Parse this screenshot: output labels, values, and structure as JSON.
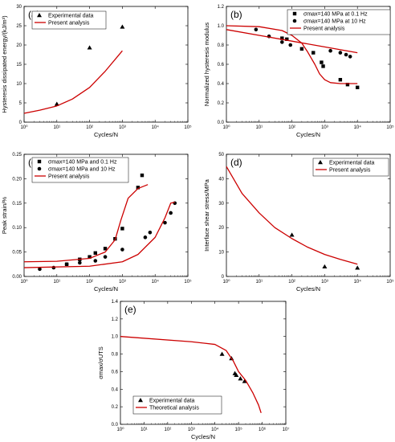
{
  "chart_data": [
    {
      "panel_label": "(a)",
      "type": "scatter",
      "xlabel": "Cycles/N",
      "ylabel": "Hysteresis dissipated energy/(kJ/m³)",
      "xscale": "log",
      "xlim": [
        1,
        100000
      ],
      "ylim": [
        0,
        30
      ],
      "xticks": [
        1,
        10,
        100,
        1000,
        10000,
        100000
      ],
      "xticklabels": [
        "10⁰",
        "10¹",
        "10²",
        "10³",
        "10⁴",
        "10⁵"
      ],
      "yticks": [
        0,
        5,
        10,
        15,
        20,
        25,
        30
      ],
      "yticklabels": [
        "0",
        "5",
        "10",
        "15",
        "20",
        "25",
        "30"
      ],
      "legend": {
        "position": "top-left",
        "entries": [
          "Experimental data",
          "Present analysis"
        ]
      },
      "series": [
        {
          "name": "Experimental data",
          "kind": "points",
          "marker": "triangle",
          "color": "#000000",
          "x": [
            10,
            100,
            1000
          ],
          "y": [
            4.7,
            19.3,
            24.7
          ]
        },
        {
          "name": "Present analysis",
          "kind": "line",
          "color": "#cc0000",
          "x": [
            1,
            3,
            10,
            30,
            100,
            300,
            1000
          ],
          "y": [
            2.3,
            3.1,
            4.2,
            6.0,
            9.0,
            13.2,
            18.5
          ]
        }
      ]
    },
    {
      "panel_label": "(b)",
      "type": "scatter",
      "xlabel": "Cycles/N",
      "ylabel": "Normalized hysteresis modulus",
      "xscale": "log",
      "xlim": [
        1,
        100000
      ],
      "ylim": [
        0,
        1.2
      ],
      "xticks": [
        1,
        10,
        100,
        1000,
        10000,
        100000
      ],
      "xticklabels": [
        "10⁰",
        "10¹",
        "10²",
        "10³",
        "10⁴",
        "10⁵"
      ],
      "yticks": [
        0,
        0.2,
        0.4,
        0.6,
        0.8,
        1.0,
        1.2
      ],
      "yticklabels": [
        "0.0",
        "0.2",
        "0.4",
        "0.6",
        "0.8",
        "1.0",
        "1.2"
      ],
      "legend": {
        "position": "top-right",
        "entries": [
          "σmax=140 MPa at 0.1 Hz",
          "σmax=140 MPa at 10 Hz",
          "Present analysis"
        ]
      },
      "series": [
        {
          "name": "σmax=140 MPa at 0.1 Hz",
          "kind": "points",
          "marker": "square",
          "color": "#000000",
          "x": [
            50,
            70,
            200,
            450,
            800,
            900,
            3000,
            5000,
            10000
          ],
          "y": [
            0.87,
            0.86,
            0.76,
            0.72,
            0.62,
            0.58,
            0.44,
            0.39,
            0.36
          ]
        },
        {
          "name": "σmax=140 MPa at 10 Hz",
          "kind": "points",
          "marker": "circle",
          "color": "#000000",
          "x": [
            8,
            20,
            50,
            90,
            1500,
            3000,
            4500,
            6000
          ],
          "y": [
            0.96,
            0.89,
            0.83,
            0.8,
            0.74,
            0.72,
            0.7,
            0.68
          ]
        },
        {
          "name": "Present analysis (0.1 Hz)",
          "kind": "line",
          "color": "#cc0000",
          "x": [
            1,
            10,
            50,
            100,
            200,
            300,
            500,
            700,
            1000,
            1500,
            3000,
            10000
          ],
          "y": [
            1.0,
            0.99,
            0.95,
            0.9,
            0.82,
            0.73,
            0.6,
            0.5,
            0.44,
            0.41,
            0.4,
            0.4
          ]
        },
        {
          "name": "Present analysis (10 Hz)",
          "kind": "line",
          "color": "#cc0000",
          "x": [
            1,
            10,
            100,
            1000,
            10000
          ],
          "y": [
            0.96,
            0.9,
            0.84,
            0.78,
            0.72
          ]
        }
      ]
    },
    {
      "panel_label": "(c)",
      "type": "scatter",
      "xlabel": "Cycles/N",
      "ylabel": "Peak strain/%",
      "xscale": "log",
      "xlim": [
        1,
        100000
      ],
      "ylim": [
        0,
        0.25
      ],
      "xticks": [
        1,
        10,
        100,
        1000,
        10000,
        100000
      ],
      "xticklabels": [
        "10⁰",
        "10¹",
        "10²",
        "10³",
        "10⁴",
        "10⁵"
      ],
      "yticks": [
        0,
        0.05,
        0.1,
        0.15,
        0.2,
        0.25
      ],
      "yticklabels": [
        "0.00",
        "0.05",
        "0.10",
        "0.15",
        "0.20",
        "0.25"
      ],
      "legend": {
        "position": "top-left",
        "entries": [
          "σmax=140 MPa and 0.1 Hz",
          "σmax=140 MPa and 10 Hz",
          "Present analysis"
        ]
      },
      "series": [
        {
          "name": "σmax=140 MPa and 0.1 Hz",
          "kind": "points",
          "marker": "square",
          "color": "#000000",
          "x": [
            20,
            50,
            100,
            150,
            300,
            600,
            1000,
            3000,
            4000
          ],
          "y": [
            0.025,
            0.035,
            0.04,
            0.048,
            0.057,
            0.077,
            0.098,
            0.182,
            0.207
          ]
        },
        {
          "name": "σmax=140 MPa and 10 Hz",
          "kind": "points",
          "marker": "circle",
          "color": "#000000",
          "x": [
            3,
            8,
            20,
            50,
            150,
            300,
            1000,
            5000,
            7000,
            20000,
            30000,
            40000
          ],
          "y": [
            0.015,
            0.018,
            0.025,
            0.028,
            0.032,
            0.04,
            0.055,
            0.08,
            0.09,
            0.11,
            0.13,
            0.15
          ]
        },
        {
          "name": "Present analysis (0.1 Hz)",
          "kind": "line",
          "color": "#cc0000",
          "x": [
            1,
            10,
            100,
            300,
            600,
            900,
            1500,
            3000,
            6000
          ],
          "y": [
            0.03,
            0.031,
            0.037,
            0.05,
            0.075,
            0.115,
            0.16,
            0.18,
            0.188
          ]
        },
        {
          "name": "Present analysis (10 Hz)",
          "kind": "line",
          "color": "#cc0000",
          "x": [
            1,
            100,
            1000,
            3000,
            10000,
            20000,
            30000,
            40000
          ],
          "y": [
            0.018,
            0.021,
            0.03,
            0.045,
            0.08,
            0.12,
            0.15,
            0.152
          ]
        }
      ]
    },
    {
      "panel_label": "(d)",
      "type": "scatter",
      "xlabel": "Cycles/N",
      "ylabel": "Interface shear stress/MPa",
      "xscale": "log",
      "xlim": [
        1,
        100000
      ],
      "ylim": [
        0,
        50
      ],
      "xticks": [
        1,
        10,
        100,
        1000,
        10000,
        100000
      ],
      "xticklabels": [
        "10⁰",
        "10¹",
        "10²",
        "10³",
        "10⁴",
        "10⁵"
      ],
      "yticks": [
        0,
        10,
        20,
        30,
        40,
        50
      ],
      "yticklabels": [
        "0",
        "10",
        "20",
        "30",
        "40",
        "50"
      ],
      "legend": {
        "position": "top-right",
        "entries": [
          "Experimental data",
          "Present analysis"
        ]
      },
      "series": [
        {
          "name": "Experimental data",
          "kind": "points",
          "marker": "triangle",
          "color": "#000000",
          "x": [
            100,
            1000,
            10000
          ],
          "y": [
            17,
            4,
            3.5
          ]
        },
        {
          "name": "Present analysis",
          "kind": "line",
          "color": "#cc0000",
          "x": [
            1,
            3,
            10,
            30,
            100,
            300,
            1000,
            3000,
            10000
          ],
          "y": [
            45,
            34,
            26,
            20,
            15.5,
            12,
            9,
            7,
            5
          ]
        }
      ]
    },
    {
      "panel_label": "(e)",
      "type": "scatter",
      "xlabel": "Cycles/N",
      "ylabel": "σmax/σUTS",
      "xscale": "log",
      "xlim": [
        1,
        10000000
      ],
      "ylim": [
        0,
        1.4
      ],
      "xticks": [
        1,
        10,
        100,
        1000,
        10000,
        100000,
        1000000,
        10000000
      ],
      "xticklabels": [
        "10⁰",
        "10¹",
        "10²",
        "10³",
        "10⁴",
        "10⁵",
        "10⁶",
        "10⁷"
      ],
      "yticks": [
        0,
        0.2,
        0.4,
        0.6,
        0.8,
        1.0,
        1.2,
        1.4
      ],
      "yticklabels": [
        "0.0",
        "0.2",
        "0.4",
        "0.6",
        "0.8",
        "1.0",
        "1.2",
        "1.4"
      ],
      "legend": {
        "position": "bottom-left",
        "entries": [
          "Experimental data",
          "Theoretical analysis"
        ]
      },
      "series": [
        {
          "name": "Experimental data",
          "kind": "points",
          "marker": "triangle",
          "color": "#000000",
          "x": [
            20000,
            50000,
            70000,
            80000,
            120000,
            180000
          ],
          "y": [
            0.8,
            0.75,
            0.58,
            0.56,
            0.52,
            0.49
          ]
        },
        {
          "name": "Theoretical analysis",
          "kind": "line",
          "color": "#cc0000",
          "x": [
            1,
            1000,
            10000,
            30000,
            60000,
            100000,
            200000,
            400000,
            700000,
            900000
          ],
          "y": [
            1.0,
            0.94,
            0.91,
            0.84,
            0.72,
            0.6,
            0.5,
            0.36,
            0.22,
            0.13
          ]
        }
      ]
    }
  ]
}
